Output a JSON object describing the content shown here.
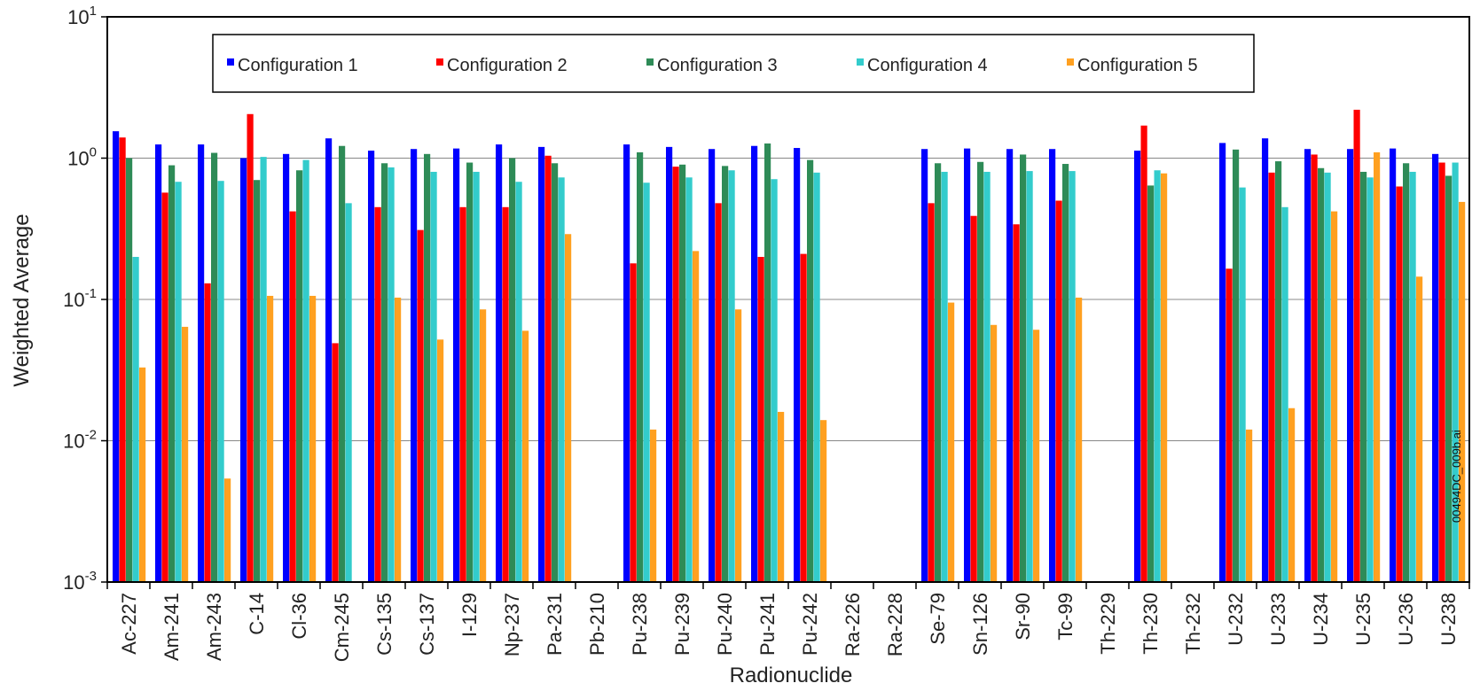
{
  "file_id": "00494DC_009b.ai",
  "chart_data": {
    "type": "bar",
    "xlabel": "Radionuclide",
    "ylabel": "Weighted Average",
    "yscale": "log",
    "ylim": [
      0.001,
      10
    ],
    "yticks": [
      {
        "base": "10",
        "exp": "-3"
      },
      {
        "base": "10",
        "exp": "-2"
      },
      {
        "base": "10",
        "exp": "-1"
      },
      {
        "base": "10",
        "exp": "0"
      },
      {
        "base": "10",
        "exp": "1"
      }
    ],
    "ytick_values": [
      0.001,
      0.01,
      0.1,
      1,
      10
    ],
    "grid": "horizontal",
    "legend_position": "top",
    "categories": [
      "Ac-227",
      "Am-241",
      "Am-243",
      "C-14",
      "Cl-36",
      "Cm-245",
      "Cs-135",
      "Cs-137",
      "I-129",
      "Np-237",
      "Pa-231",
      "Pb-210",
      "Pu-238",
      "Pu-239",
      "Pu-240",
      "Pu-241",
      "Pu-242",
      "Ra-226",
      "Ra-228",
      "Se-79",
      "Sn-126",
      "Sr-90",
      "Tc-99",
      "Th-229",
      "Th-230",
      "Th-232",
      "U-232",
      "U-233",
      "U-234",
      "U-235",
      "U-236",
      "U-238"
    ],
    "series": [
      {
        "name": "Configuration 1",
        "color": "#0000ff",
        "values": [
          1.55,
          1.25,
          1.25,
          1.0,
          1.07,
          1.38,
          1.13,
          1.16,
          1.17,
          1.25,
          1.2,
          null,
          1.25,
          1.2,
          1.16,
          1.22,
          1.18,
          null,
          null,
          1.16,
          1.17,
          1.16,
          1.16,
          null,
          1.13,
          null,
          1.28,
          1.38,
          1.16,
          1.16,
          1.17,
          1.07
        ]
      },
      {
        "name": "Configuration 2",
        "color": "#ff0000",
        "values": [
          1.4,
          0.57,
          0.13,
          2.05,
          0.42,
          0.049,
          0.45,
          0.31,
          0.45,
          0.45,
          1.04,
          null,
          0.18,
          0.87,
          0.48,
          0.2,
          0.21,
          null,
          null,
          0.48,
          0.39,
          0.34,
          0.5,
          null,
          1.7,
          null,
          0.165,
          0.79,
          1.06,
          2.2,
          0.63,
          0.93
        ]
      },
      {
        "name": "Configuration 3",
        "color": "#2e8b57",
        "values": [
          1.0,
          0.89,
          1.09,
          0.7,
          0.82,
          1.22,
          0.92,
          1.07,
          0.93,
          1.0,
          0.92,
          null,
          1.1,
          0.9,
          0.88,
          1.27,
          0.97,
          null,
          null,
          0.92,
          0.94,
          1.06,
          0.91,
          null,
          0.64,
          null,
          1.15,
          0.95,
          0.85,
          0.8,
          0.92,
          0.75
        ]
      },
      {
        "name": "Configuration 4",
        "color": "#33cccc",
        "values": [
          0.2,
          0.68,
          0.69,
          1.02,
          0.97,
          0.48,
          0.86,
          0.8,
          0.8,
          0.68,
          0.73,
          null,
          0.67,
          0.73,
          0.82,
          0.71,
          0.79,
          null,
          null,
          0.8,
          0.8,
          0.81,
          0.81,
          null,
          0.82,
          null,
          0.62,
          0.45,
          0.79,
          0.73,
          0.8,
          0.93
        ]
      },
      {
        "name": "Configuration 5",
        "color": "#ffa020",
        "values": [
          0.033,
          0.064,
          0.0054,
          0.106,
          0.106,
          null,
          0.103,
          0.052,
          0.085,
          0.06,
          0.29,
          null,
          0.012,
          0.22,
          0.085,
          0.016,
          0.014,
          null,
          null,
          0.095,
          0.066,
          0.061,
          0.103,
          null,
          0.78,
          null,
          0.012,
          0.017,
          0.42,
          1.1,
          0.145,
          0.49
        ]
      }
    ]
  }
}
